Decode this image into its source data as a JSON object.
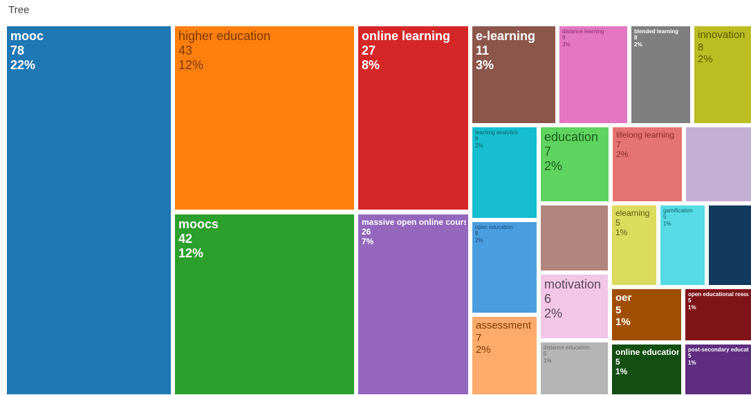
{
  "title": "Tree",
  "chart_data": {
    "type": "treemap",
    "title": "Tree",
    "items": [
      {
        "label": "mooc",
        "value": 78,
        "percent": "22%",
        "color": "#1f77b4",
        "text_color": "#ffffff",
        "size": "large",
        "bold": true
      },
      {
        "label": "higher education",
        "value": 43,
        "percent": "12%",
        "color": "#ff7f0e",
        "text_color": "#7a3a00",
        "size": "large",
        "bold": false
      },
      {
        "label": "online learning",
        "value": 27,
        "percent": "8%",
        "color": "#d62728",
        "text_color": "#ffffff",
        "size": "large",
        "bold": true
      },
      {
        "label": "moocs",
        "value": 42,
        "percent": "12%",
        "color": "#2ca02c",
        "text_color": "#ffffff",
        "size": "large",
        "bold": true
      },
      {
        "label": "massive open online courses",
        "value": 26,
        "percent": "7%",
        "color": "#9467bd",
        "text_color": "#ffffff",
        "size": "small",
        "bold": true
      },
      {
        "label": "e-learning",
        "value": 11,
        "percent": "3%",
        "color": "#8c564b",
        "text_color": "#ffffff",
        "size": "large",
        "bold": true
      },
      {
        "label": "distance learning",
        "value": 9,
        "percent": "3%",
        "color": "#e377c2",
        "text_color": "#8a2a6e",
        "size": "tiny",
        "bold": false
      },
      {
        "label": "blended learning",
        "value": 8,
        "percent": "2%",
        "color": "#7f7f7f",
        "text_color": "#ffffff",
        "size": "tiny",
        "bold": true
      },
      {
        "label": "innovation",
        "value": 8,
        "percent": "2%",
        "color": "#bcbd22",
        "text_color": "#5a5a00",
        "size": "medium",
        "bold": false
      },
      {
        "label": "learning analytics",
        "value": 8,
        "percent": "2%",
        "color": "#17becf",
        "text_color": "#0b5d66",
        "size": "tiny",
        "bold": false
      },
      {
        "label": "education",
        "value": 7,
        "percent": "2%",
        "color": "#5fd35f",
        "text_color": "#1b5e1b",
        "size": "large",
        "bold": false
      },
      {
        "label": "lifelong learning",
        "value": 7,
        "percent": "2%",
        "color": "#e57373",
        "text_color": "#8b2a2a",
        "size": "small",
        "bold": false
      },
      {
        "label": "",
        "value": null,
        "percent": "",
        "color": "#c5b0d5",
        "text_color": "#7a6a8a",
        "size": "tiny",
        "bold": false
      },
      {
        "label": "open education",
        "value": 8,
        "percent": "2%",
        "color": "#4a9ee0",
        "text_color": "#14497a",
        "size": "tiny",
        "bold": false
      },
      {
        "label": "",
        "value": null,
        "percent": "",
        "color": "#b0867c",
        "text_color": "#6d4c44",
        "size": "tiny",
        "bold": false
      },
      {
        "label": "elearning",
        "value": 5,
        "percent": "1%",
        "color": "#dbdb5e",
        "text_color": "#5a5a10",
        "size": "small",
        "bold": false
      },
      {
        "label": "gamification",
        "value": 5,
        "percent": "1%",
        "color": "#56dbe6",
        "text_color": "#0b5d66",
        "size": "tiny",
        "bold": false
      },
      {
        "label": "",
        "value": null,
        "percent": "",
        "color": "#123a5e",
        "text_color": "#cfe0ee",
        "size": "tiny",
        "bold": false
      },
      {
        "label": "motivation",
        "value": 6,
        "percent": "2%",
        "color": "#f1c6e6",
        "text_color": "#5a4a55",
        "size": "large",
        "bold": false
      },
      {
        "label": "oer",
        "value": 5,
        "percent": "1%",
        "color": "#a04f00",
        "text_color": "#ffffff",
        "size": "medium",
        "bold": true
      },
      {
        "label": "open educational resources",
        "value": 5,
        "percent": "1%",
        "color": "#7f1418",
        "text_color": "#ffffff",
        "size": "tiny",
        "bold": true
      },
      {
        "label": "assessment",
        "value": 7,
        "percent": "2%",
        "color": "#ffab6b",
        "text_color": "#7a3a00",
        "size": "medium",
        "bold": false
      },
      {
        "label": "distance education",
        "value": 5,
        "percent": "1%",
        "color": "#b5b5b5",
        "text_color": "#6a6a6a",
        "size": "tiny",
        "bold": false
      },
      {
        "label": "online education",
        "value": 5,
        "percent": "1%",
        "color": "#134e13",
        "text_color": "#ffffff",
        "size": "small",
        "bold": true
      },
      {
        "label": "post-secondary education",
        "value": 5,
        "percent": "1%",
        "color": "#5e2d80",
        "text_color": "#ffffff",
        "size": "tiny",
        "bold": true
      }
    ]
  }
}
